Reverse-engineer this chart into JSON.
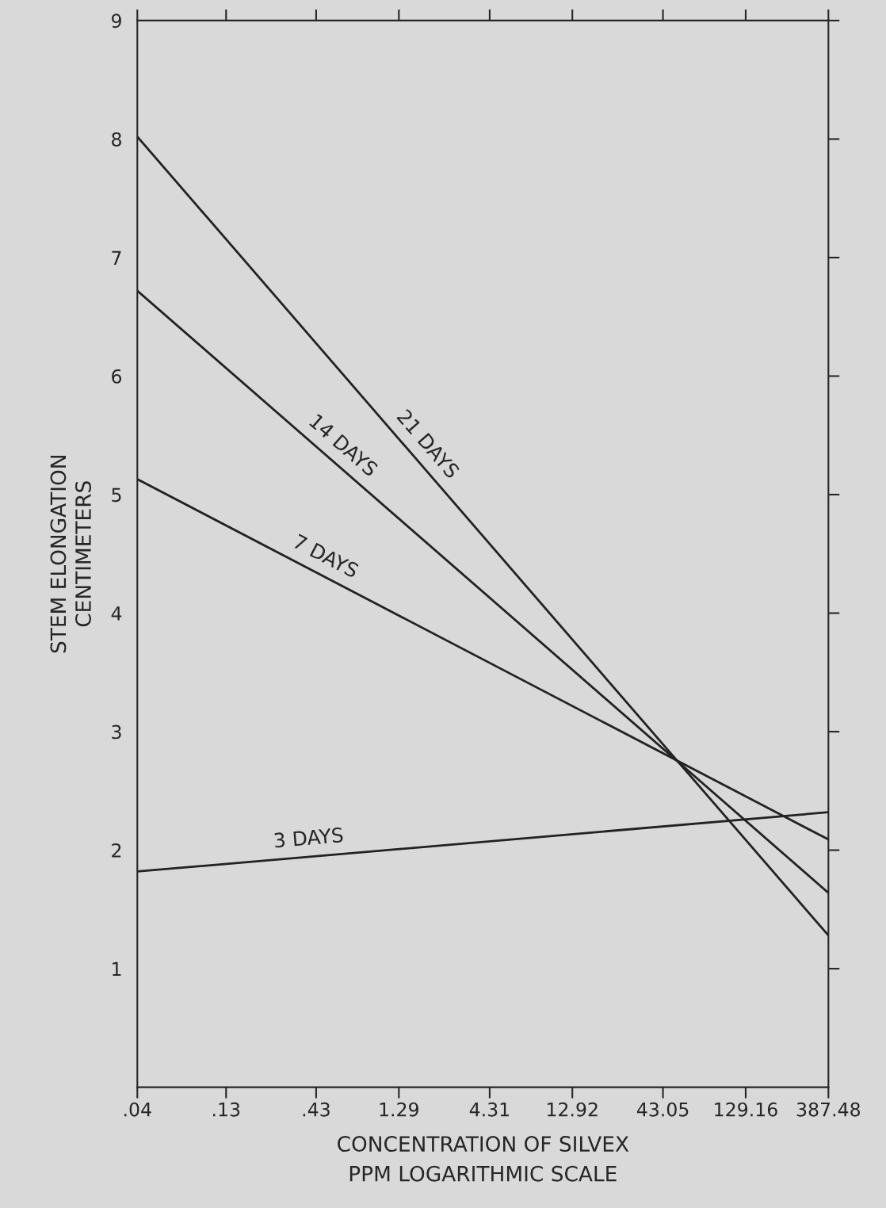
{
  "chart_data": {
    "type": "line",
    "xlabel": "CONCENTRATION OF SILVEX\nPPM LOGARITHMIC SCALE",
    "ylabel": "STEM ELONGATION\nCENTIMETERS",
    "log": "x",
    "xlim": [
      0.04,
      387.48
    ],
    "ylim": [
      0,
      9
    ],
    "xticks": [
      {
        "value": 0.04,
        "label": ".04"
      },
      {
        "value": 0.13,
        "label": ".13"
      },
      {
        "value": 0.43,
        "label": ".43"
      },
      1.29,
      4.31,
      12.92,
      43.05,
      129.16,
      387.48
    ],
    "yticks": [
      1,
      2,
      3,
      4,
      5,
      6,
      7,
      8,
      9
    ],
    "grid": false,
    "legend": false,
    "marker": "none",
    "line_style": "solid",
    "x": [
      0.04,
      387.48
    ],
    "series": [
      {
        "name": "21 DAYS",
        "color": "#222222",
        "values": [
          8.02,
          1.28
        ]
      },
      {
        "name": "14 DAYS",
        "color": "#222222",
        "values": [
          6.72,
          1.64
        ]
      },
      {
        "name": "7 DAYS",
        "color": "#222222",
        "values": [
          5.13,
          2.09
        ]
      },
      {
        "name": "3 DAYS",
        "color": "#222222",
        "values": [
          1.82,
          2.32
        ]
      }
    ]
  }
}
